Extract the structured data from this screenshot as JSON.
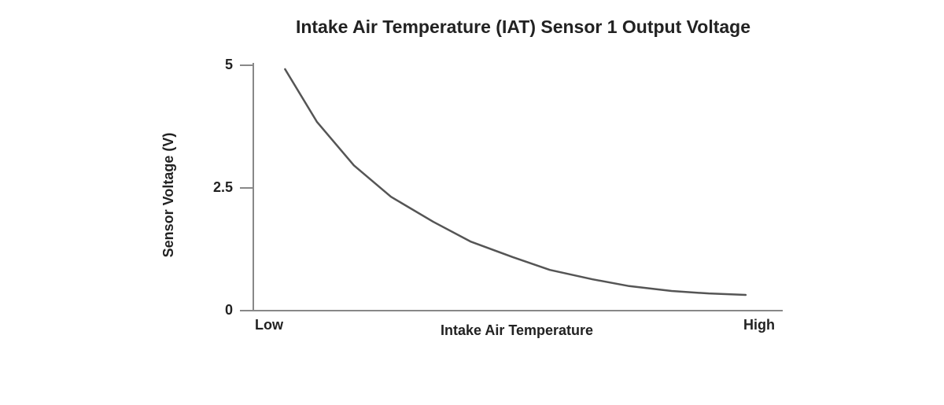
{
  "chart_data": {
    "type": "line",
    "title": "Intake Air Temperature (IAT) Sensor 1 Output Voltage",
    "x_label": "Intake Air Temperature",
    "y_label": "Sensor Voltage (V)",
    "x": [
      6,
      12,
      19,
      26,
      34,
      41,
      49,
      56,
      64,
      71,
      79,
      86,
      93
    ],
    "series": [
      {
        "name": "Sensor Voltage",
        "color": "#555555",
        "values": [
          4.92,
          3.85,
          2.96,
          2.32,
          1.81,
          1.41,
          1.09,
          0.83,
          0.64,
          0.5,
          0.4,
          0.35,
          0.32
        ]
      }
    ],
    "xlim": [
      0,
      100
    ],
    "xticks": [
      {
        "value": 0,
        "label": "Low"
      },
      {
        "value": 100,
        "label": "High"
      }
    ],
    "ylim": [
      0,
      5
    ],
    "yticks": [
      0,
      2.5,
      5
    ],
    "grid": false
  }
}
